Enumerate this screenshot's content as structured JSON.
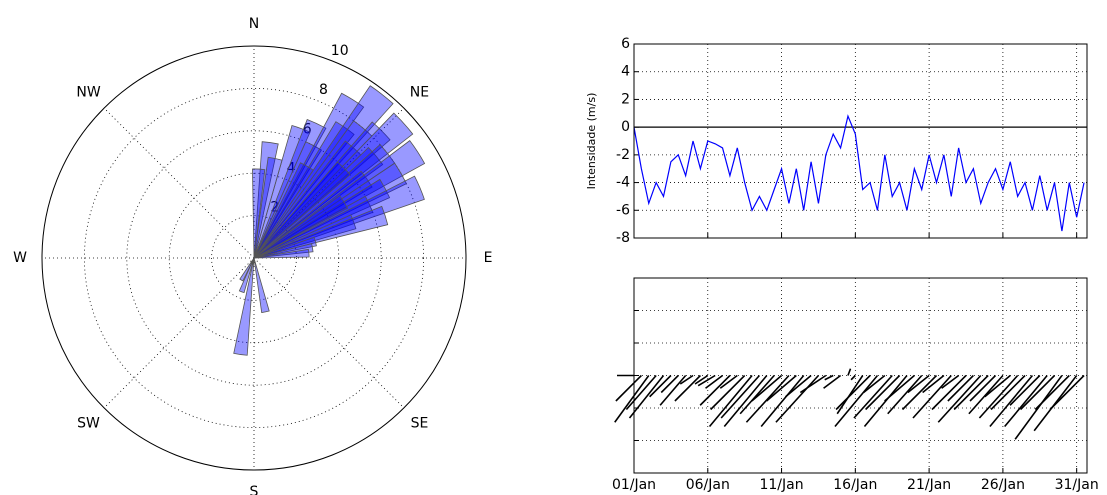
{
  "chart_data": [
    {
      "type": "polar_bar",
      "thetaticks": [
        {
          "value": 0,
          "label": "N"
        },
        {
          "value": 45,
          "label": "NE"
        },
        {
          "value": 90,
          "label": "E"
        },
        {
          "value": 135,
          "label": "SE"
        },
        {
          "value": 180,
          "label": "S"
        },
        {
          "value": 225,
          "label": "SW"
        },
        {
          "value": 270,
          "label": "W"
        },
        {
          "value": 315,
          "label": "NW"
        }
      ],
      "rlim": [
        0,
        10
      ],
      "rticks": [
        2,
        4,
        6,
        8,
        10
      ],
      "theta": [
        8,
        3,
        12,
        20,
        25,
        28,
        32,
        35,
        38,
        40,
        42,
        45,
        48,
        50,
        52,
        55,
        57,
        60,
        62,
        65,
        67,
        70,
        72,
        75,
        80,
        85,
        168,
        188,
        200,
        210,
        30,
        45,
        58
      ],
      "values": [
        5.5,
        4.2,
        4.8,
        6.5,
        7,
        6,
        8.8,
        7.5,
        9.8,
        8,
        7,
        8.5,
        9.5,
        7.5,
        8,
        6.5,
        9.2,
        8,
        7,
        6,
        8.5,
        5,
        6.5,
        3,
        2.8,
        2.6,
        2.6,
        4.6,
        1.7,
        1.2,
        5,
        6,
        5
      ],
      "color": "#0000ff"
    },
    {
      "type": "line",
      "y_label": "Intensidade (m/s)",
      "x": [
        1,
        1.5,
        2,
        2.5,
        3,
        3.5,
        4,
        4.5,
        5,
        5.5,
        6,
        6.5,
        7,
        7.5,
        8,
        8.5,
        9,
        9.5,
        10,
        10.5,
        11,
        11.5,
        12,
        12.5,
        13,
        13.5,
        14,
        14.5,
        15,
        15.5,
        16,
        16.5,
        17,
        17.5,
        18,
        18.5,
        19,
        19.5,
        20,
        20.5,
        21,
        21.5,
        22,
        22.5,
        23,
        23.5,
        24,
        24.5,
        25,
        25.5,
        26,
        26.5,
        27,
        27.5,
        28,
        28.5,
        29,
        29.5,
        30,
        30.5,
        31,
        31.5
      ],
      "series": [
        {
          "color": "#0000ff",
          "values": [
            0,
            -3,
            -5.5,
            -4,
            -5,
            -2.5,
            -2,
            -3.5,
            -1,
            -3,
            -1,
            -1.2,
            -1.5,
            -3.5,
            -1.5,
            -4,
            -6,
            -5,
            -6,
            -4.5,
            -3,
            -5.5,
            -3,
            -6,
            -2.5,
            -5.5,
            -2,
            -0.5,
            -1.5,
            0.8,
            -0.5,
            -4.5,
            -4,
            -6,
            -2,
            -5,
            -4,
            -6,
            -3,
            -4.5,
            -2,
            -4,
            -2,
            -5,
            -1.5,
            -4,
            -3,
            -5.5,
            -4,
            -3,
            -4.5,
            -2.5,
            -5,
            -4,
            -6,
            -3.5,
            -6,
            -4,
            -7.5,
            -4,
            -6.5,
            -4
          ]
        }
      ],
      "reference_line": 0,
      "xlim": [
        1,
        31.7
      ],
      "xticks": [
        1,
        6,
        11,
        16,
        21,
        26,
        31
      ],
      "ylim": [
        -8,
        6
      ],
      "yticks": [
        -8,
        -6,
        -4,
        -2,
        0,
        2,
        4,
        6
      ],
      "grid": true
    },
    {
      "type": "quiver",
      "x": [
        1,
        1.5,
        2,
        2.5,
        3,
        3.5,
        4,
        4.5,
        5,
        5.5,
        6,
        6.5,
        7,
        7.5,
        8,
        8.5,
        9,
        9.5,
        10,
        10.5,
        11,
        11.5,
        12,
        12.5,
        13,
        13.5,
        14,
        14.5,
        15,
        15.5,
        16,
        16.5,
        17,
        17.5,
        18,
        18.5,
        19,
        19.5,
        20,
        20.5,
        21,
        21.5,
        22,
        22.5,
        23,
        23.5,
        24,
        24.5,
        25,
        25.5,
        26,
        26.5,
        27,
        27.5,
        28,
        28.5,
        29,
        29.5,
        30,
        30.5,
        31,
        31.5
      ],
      "u": [
        -2,
        -3,
        -4,
        -3.5,
        -4,
        -2.5,
        -2,
        -3,
        -1.5,
        -3,
        -1.5,
        -2,
        -2,
        -3.5,
        -2,
        -4,
        -5,
        -4.5,
        -5,
        -4,
        -3.5,
        -5,
        -3.5,
        -5,
        -3,
        -5,
        -3,
        -1,
        -2,
        0.3,
        -0.5,
        -3,
        -4,
        -5,
        -2.5,
        -4.5,
        -4,
        -5,
        -3.5,
        -4,
        -2.5,
        -4,
        -2.5,
        -4.5,
        -2,
        -4,
        -3,
        -5,
        -4,
        -3,
        -4,
        -3,
        -4.5,
        -4,
        -5,
        -3.5,
        -5,
        -4,
        -5.5,
        -4,
        -5,
        -4
      ],
      "v": [
        0,
        -3,
        -5.5,
        -4,
        -5,
        -2.5,
        -2,
        -3.5,
        -1,
        -3,
        -1,
        -1.2,
        -1.5,
        -3.5,
        -1.5,
        -4,
        -6,
        -5,
        -6,
        -4.5,
        -3,
        -5.5,
        -3,
        -6,
        -2.5,
        -5.5,
        -2,
        -0.5,
        -1.5,
        0.8,
        -0.5,
        -4.5,
        -4,
        -6,
        -2,
        -5,
        -4,
        -6,
        -3,
        -4.5,
        -2,
        -4,
        -2,
        -5,
        -1.5,
        -4,
        -3,
        -5.5,
        -4,
        -3,
        -4.5,
        -2.5,
        -5,
        -4,
        -6,
        -3.5,
        -6,
        -4,
        -7.5,
        -4,
        -6.5,
        -4
      ],
      "color": "#000000",
      "xlim": [
        1,
        31.7
      ],
      "xticks": [
        {
          "value": 1,
          "label": "01/Jan"
        },
        {
          "value": 6,
          "label": "06/Jan"
        },
        {
          "value": 11,
          "label": "11/Jan"
        },
        {
          "value": 16,
          "label": "16/Jan"
        },
        {
          "value": 21,
          "label": "21/Jan"
        },
        {
          "value": 26,
          "label": "26/Jan"
        },
        {
          "value": 31,
          "label": "31/Jan"
        }
      ],
      "ylim": [
        -6,
        6
      ],
      "yticks": [
        -4,
        -2,
        0,
        2,
        4
      ],
      "grid": true
    }
  ]
}
